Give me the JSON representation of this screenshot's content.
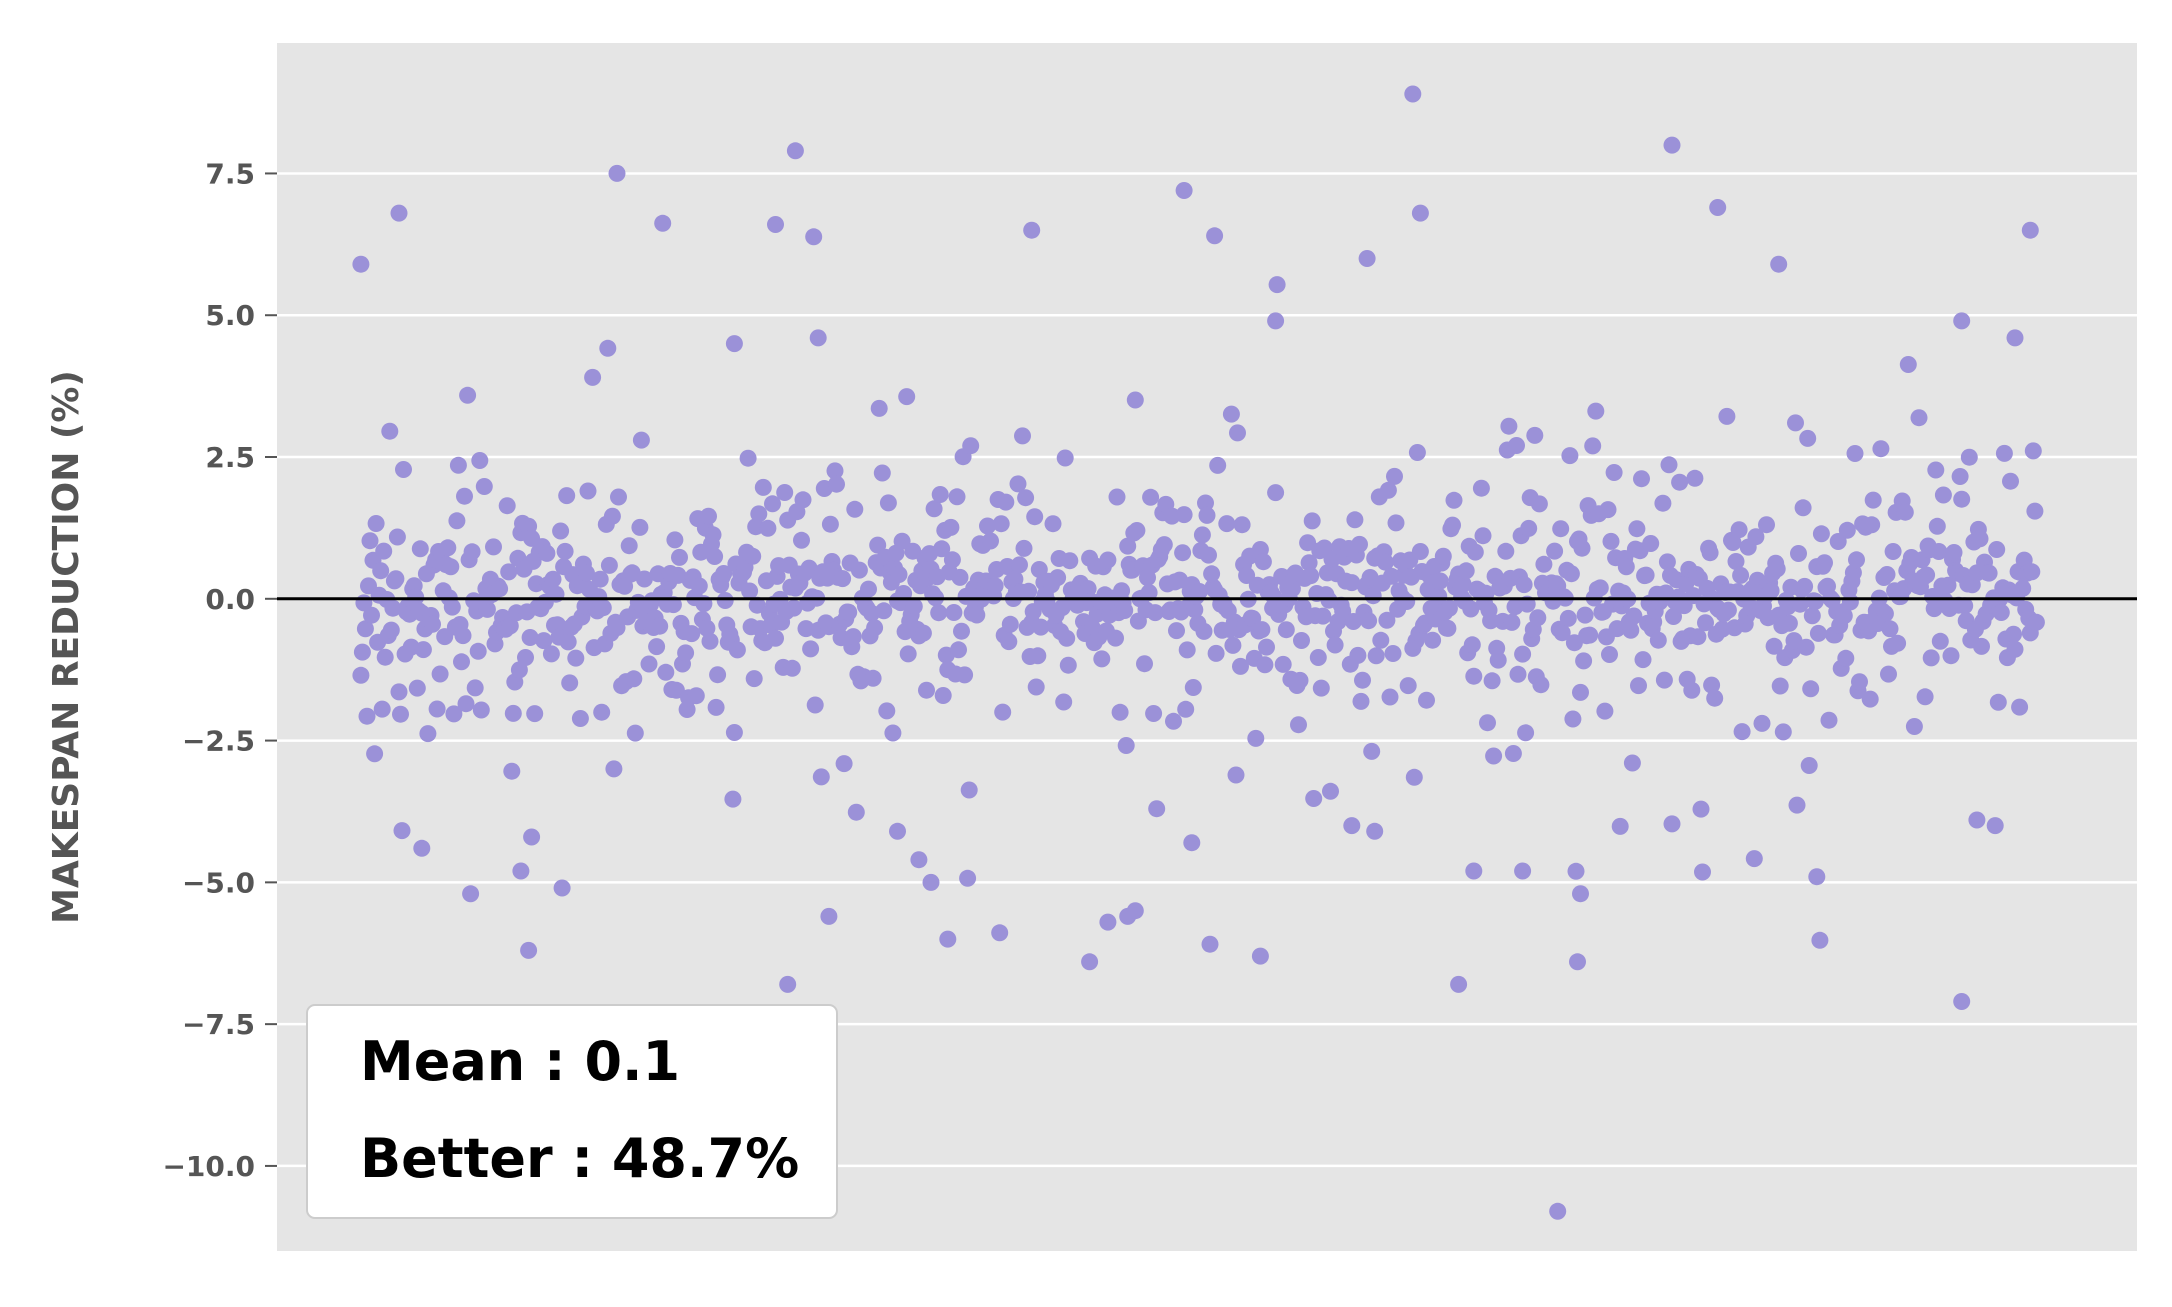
{
  "chart_data": {
    "type": "scatter",
    "title": "",
    "xlabel": "",
    "ylabel": "MAKESPAN REDUCTION (%)",
    "ylim": [
      -11.5,
      9.8
    ],
    "xlim": [
      -55,
      1165
    ],
    "yticks": [
      7.5,
      5.0,
      2.5,
      0.0,
      -2.5,
      -5.0,
      -7.5,
      -10.0
    ],
    "ytick_labels": [
      "7.5",
      "5.0",
      "2.5",
      "0.0",
      "−2.5",
      "−5.0",
      "−7.5",
      "−10.0"
    ],
    "x_ticks_visible": false,
    "grid": "horizontal",
    "reference_line": 0.0,
    "n_points": 1100,
    "summary": {
      "mean_label": "Mean : 0.1",
      "better_label": "Better : 48.7%",
      "placement": "bottom-left"
    },
    "highlight_points": [
      {
        "x": 0,
        "y": 5.9
      },
      {
        "x": 25,
        "y": 6.8
      },
      {
        "x": 168,
        "y": 7.5
      },
      {
        "x": 285,
        "y": 7.9
      },
      {
        "x": 540,
        "y": 7.2
      },
      {
        "x": 660,
        "y": 6.0
      },
      {
        "x": 690,
        "y": 8.9
      },
      {
        "x": 695,
        "y": 6.8
      },
      {
        "x": 860,
        "y": 8.0
      },
      {
        "x": 1095,
        "y": 6.5
      },
      {
        "x": 272,
        "y": 6.6
      },
      {
        "x": 440,
        "y": 6.5
      },
      {
        "x": 560,
        "y": 6.4
      },
      {
        "x": 890,
        "y": 6.9
      },
      {
        "x": 600,
        "y": 4.9
      },
      {
        "x": 1085,
        "y": 4.6
      },
      {
        "x": 1050,
        "y": 4.9
      },
      {
        "x": 300,
        "y": 4.6
      },
      {
        "x": 930,
        "y": 5.9
      },
      {
        "x": 245,
        "y": 4.5
      },
      {
        "x": 40,
        "y": -4.4
      },
      {
        "x": 105,
        "y": -4.8
      },
      {
        "x": 110,
        "y": -6.2
      },
      {
        "x": 280,
        "y": -6.8
      },
      {
        "x": 307,
        "y": -5.6
      },
      {
        "x": 366,
        "y": -4.6
      },
      {
        "x": 374,
        "y": -5.0
      },
      {
        "x": 385,
        "y": -6.0
      },
      {
        "x": 478,
        "y": -6.4
      },
      {
        "x": 490,
        "y": -5.7
      },
      {
        "x": 503,
        "y": -5.6
      },
      {
        "x": 508,
        "y": -5.5
      },
      {
        "x": 590,
        "y": -6.3
      },
      {
        "x": 720,
        "y": -6.8
      },
      {
        "x": 730,
        "y": -4.8
      },
      {
        "x": 762,
        "y": -4.8
      },
      {
        "x": 785,
        "y": -10.8
      },
      {
        "x": 798,
        "y": -6.4
      },
      {
        "x": 800,
        "y": -5.2
      },
      {
        "x": 1050,
        "y": -7.1
      },
      {
        "x": 955,
        "y": -4.9
      },
      {
        "x": 1060,
        "y": -3.9
      },
      {
        "x": 545,
        "y": -4.3
      },
      {
        "x": 1072,
        "y": -4.0
      },
      {
        "x": 665,
        "y": -4.1
      },
      {
        "x": 650,
        "y": -4.0
      },
      {
        "x": 112,
        "y": -4.2
      },
      {
        "x": 352,
        "y": -4.1
      }
    ]
  },
  "colors": {
    "background": "#ffffff",
    "plot_background": "#e5e5e5",
    "grid": "#ffffff",
    "point": "#9b91d8",
    "zero_line": "#000000",
    "tick_text": "#555555",
    "legend_text": "#000000",
    "legend_bg": "#ffffff",
    "legend_border": "#cccccc"
  }
}
